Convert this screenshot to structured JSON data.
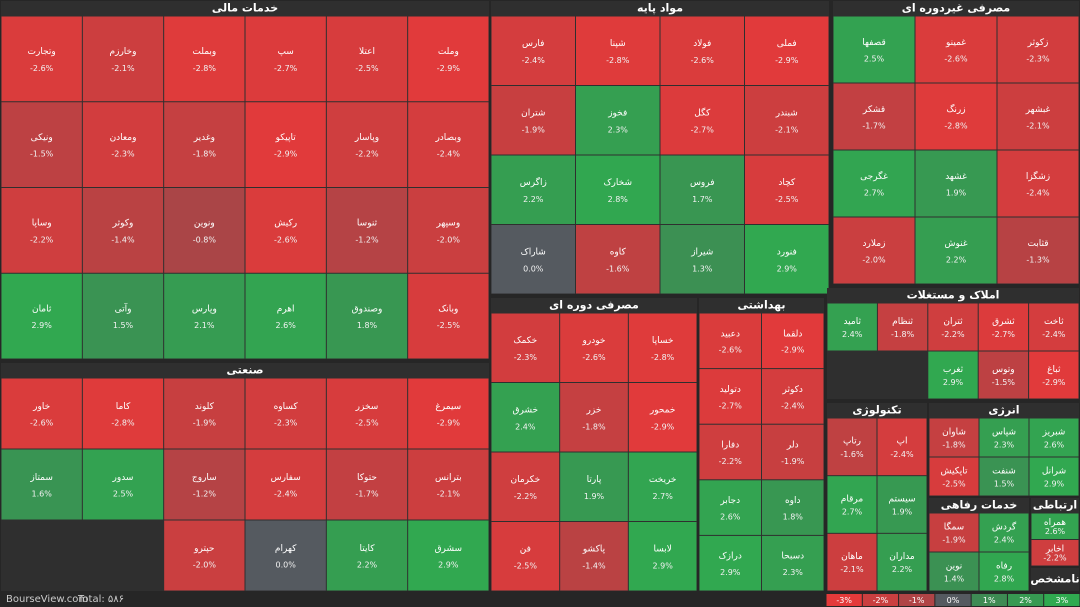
{
  "chart_data": {
    "type": "treemap",
    "sectors": [
      {
        "name": "خدمات مالی",
        "stocks": [
          {
            "name": "وملت",
            "value": -2.9,
            "label": "-2.9%"
          },
          {
            "name": "اعتلا",
            "value": -2.5,
            "label": "-2.5%"
          },
          {
            "name": "سپ",
            "value": -2.7,
            "label": "-2.7%"
          },
          {
            "name": "وبملت",
            "value": -2.8,
            "label": "-2.8%"
          },
          {
            "name": "وخارزم",
            "value": -2.1,
            "label": "-2.1%"
          },
          {
            "name": "وتجارت",
            "value": -2.6,
            "label": "-2.6%"
          },
          {
            "name": "وبصادر",
            "value": -2.4,
            "label": "-2.4%"
          },
          {
            "name": "وپاسار",
            "value": -2.2,
            "label": "-2.2%"
          },
          {
            "name": "تاپیکو",
            "value": -2.9,
            "label": "-2.9%"
          },
          {
            "name": "وغدیر",
            "value": -1.8,
            "label": "-1.8%"
          },
          {
            "name": "ومعادن",
            "value": -2.3,
            "label": "-2.3%"
          },
          {
            "name": "ونیکی",
            "value": -1.5,
            "label": "-1.5%"
          },
          {
            "name": "وسپهر",
            "value": -2.0,
            "label": "-2.0%"
          },
          {
            "name": "ثنوسا",
            "value": -1.2,
            "label": "-1.2%"
          },
          {
            "name": "رکیش",
            "value": -2.6,
            "label": "-2.6%"
          },
          {
            "name": "ونوین",
            "value": -0.8,
            "label": "-0.8%"
          },
          {
            "name": "وکوثر",
            "value": -1.4,
            "label": "-1.4%"
          },
          {
            "name": "وساپا",
            "value": -2.2,
            "label": "-2.2%"
          },
          {
            "name": "وبانک",
            "value": -2.5,
            "label": "-2.5%"
          },
          {
            "name": "وصندوق",
            "value": 1.8,
            "label": "1.8%"
          },
          {
            "name": "اهرم",
            "value": 2.6,
            "label": "2.6%"
          },
          {
            "name": "وپارس",
            "value": 2.1,
            "label": "2.1%"
          },
          {
            "name": "وآتی",
            "value": 1.5,
            "label": "1.5%"
          },
          {
            "name": "ثامان",
            "value": 2.9,
            "label": "2.9%"
          }
        ]
      },
      {
        "name": "مواد پایه",
        "stocks": [
          {
            "name": "فملی",
            "value": -2.9,
            "label": "-2.9%"
          },
          {
            "name": "فولاد",
            "value": -2.6,
            "label": "-2.6%"
          },
          {
            "name": "شپنا",
            "value": -2.8,
            "label": "-2.8%"
          },
          {
            "name": "فارس",
            "value": -2.4,
            "label": "-2.4%"
          },
          {
            "name": "شبندر",
            "value": -2.1,
            "label": "-2.1%"
          },
          {
            "name": "کگل",
            "value": -2.7,
            "label": "-2.7%"
          },
          {
            "name": "فخوز",
            "value": 2.3,
            "label": "2.3%"
          },
          {
            "name": "شتران",
            "value": -1.9,
            "label": "-1.9%"
          },
          {
            "name": "کچاد",
            "value": -2.5,
            "label": "-2.5%"
          },
          {
            "name": "فروس",
            "value": 1.7,
            "label": "1.7%"
          },
          {
            "name": "شخارک",
            "value": 2.8,
            "label": "2.8%"
          },
          {
            "name": "زاگرس",
            "value": 2.2,
            "label": "2.2%"
          },
          {
            "name": "فنورد",
            "value": 2.9,
            "label": "2.9%"
          },
          {
            "name": "شیراز",
            "value": 1.3,
            "label": "1.3%"
          },
          {
            "name": "کاوه",
            "value": -1.6,
            "label": "-1.6%"
          },
          {
            "name": "شاراک",
            "value": 0.0,
            "label": "0.0%"
          }
        ]
      },
      {
        "name": "مصرفی غیردوره ای",
        "stocks": [
          {
            "name": "زکوثر",
            "value": -2.3,
            "label": "-2.3%"
          },
          {
            "name": "غمینو",
            "value": -2.6,
            "label": "-2.6%"
          },
          {
            "name": "قصفها",
            "value": 2.5,
            "label": "2.5%"
          },
          {
            "name": "غبشهر",
            "value": -2.1,
            "label": "-2.1%"
          },
          {
            "name": "زرنگ",
            "value": -2.8,
            "label": "-2.8%"
          },
          {
            "name": "قشکر",
            "value": -1.7,
            "label": "-1.7%"
          },
          {
            "name": "زشگزا",
            "value": -2.4,
            "label": "-2.4%"
          },
          {
            "name": "غشهد",
            "value": 1.9,
            "label": "1.9%"
          },
          {
            "name": "غگرجی",
            "value": 2.7,
            "label": "2.7%"
          },
          {
            "name": "قثابت",
            "value": -1.3,
            "label": "-1.3%"
          },
          {
            "name": "غنوش",
            "value": 2.2,
            "label": "2.2%"
          },
          {
            "name": "زملارد",
            "value": -2.0,
            "label": "-2.0%"
          }
        ]
      },
      {
        "name": "املاک و مستغلات",
        "stocks": [
          {
            "name": "ثاخت",
            "value": -2.4,
            "label": "-2.4%"
          },
          {
            "name": "ثشرق",
            "value": -2.7,
            "label": "-2.7%"
          },
          {
            "name": "ثتران",
            "value": -2.2,
            "label": "-2.2%"
          },
          {
            "name": "ثنظام",
            "value": -1.8,
            "label": "-1.8%"
          },
          {
            "name": "ثامید",
            "value": 2.4,
            "label": "2.4%"
          },
          {
            "name": "ثباغ",
            "value": -2.9,
            "label": "-2.9%"
          },
          {
            "name": "وتوس",
            "value": -1.5,
            "label": "-1.5%"
          },
          {
            "name": "ثغرب",
            "value": 2.9,
            "label": "2.9%"
          }
        ]
      },
      {
        "name": "صنعتی",
        "stocks": [
          {
            "name": "سیمرغ",
            "value": -2.9,
            "label": "-2.9%"
          },
          {
            "name": "سخزر",
            "value": -2.5,
            "label": "-2.5%"
          },
          {
            "name": "کساوه",
            "value": -2.3,
            "label": "-2.3%"
          },
          {
            "name": "کلوند",
            "value": -1.9,
            "label": "-1.9%"
          },
          {
            "name": "کاما",
            "value": -2.8,
            "label": "-2.8%"
          },
          {
            "name": "خاور",
            "value": -2.6,
            "label": "-2.6%"
          },
          {
            "name": "بترانس",
            "value": -2.1,
            "label": "-2.1%"
          },
          {
            "name": "حتوکا",
            "value": -1.7,
            "label": "-1.7%"
          },
          {
            "name": "سفارس",
            "value": -2.4,
            "label": "-2.4%"
          },
          {
            "name": "ساروج",
            "value": -1.2,
            "label": "-1.2%"
          },
          {
            "name": "سدور",
            "value": 2.5,
            "label": "2.5%"
          },
          {
            "name": "سمتاز",
            "value": 1.6,
            "label": "1.6%"
          },
          {
            "name": "سشرق",
            "value": 2.9,
            "label": "2.9%"
          },
          {
            "name": "کایتا",
            "value": 2.2,
            "label": "2.2%"
          },
          {
            "name": "کهرام",
            "value": 0.0,
            "label": "0.0%"
          },
          {
            "name": "حپترو",
            "value": -2.0,
            "label": "-2.0%"
          }
        ]
      },
      {
        "name": "مصرفی دوره ای",
        "stocks": [
          {
            "name": "خساپا",
            "value": -2.8,
            "label": "-2.8%"
          },
          {
            "name": "خودرو",
            "value": -2.6,
            "label": "-2.6%"
          },
          {
            "name": "خکمک",
            "value": -2.3,
            "label": "-2.3%"
          },
          {
            "name": "خمحور",
            "value": -2.9,
            "label": "-2.9%"
          },
          {
            "name": "خزر",
            "value": -1.8,
            "label": "-1.8%"
          },
          {
            "name": "خشرق",
            "value": 2.4,
            "label": "2.4%"
          },
          {
            "name": "خریخت",
            "value": 2.7,
            "label": "2.7%"
          },
          {
            "name": "پارتا",
            "value": 1.9,
            "label": "1.9%"
          },
          {
            "name": "خکرمان",
            "value": -2.2,
            "label": "-2.2%"
          },
          {
            "name": "لابسا",
            "value": 2.9,
            "label": "2.9%"
          },
          {
            "name": "پاکشو",
            "value": -1.4,
            "label": "-1.4%"
          },
          {
            "name": "فن",
            "value": -2.5,
            "label": "-2.5%"
          }
        ]
      },
      {
        "name": "بهداشتی",
        "stocks": [
          {
            "name": "دلقما",
            "value": -2.9,
            "label": "-2.9%"
          },
          {
            "name": "دعبید",
            "value": -2.6,
            "label": "-2.6%"
          },
          {
            "name": "دکوثر",
            "value": -2.4,
            "label": "-2.4%"
          },
          {
            "name": "دتولید",
            "value": -2.7,
            "label": "-2.7%"
          },
          {
            "name": "دلر",
            "value": -1.9,
            "label": "-1.9%"
          },
          {
            "name": "دفارا",
            "value": -2.2,
            "label": "-2.2%"
          },
          {
            "name": "داوه",
            "value": 1.8,
            "label": "1.8%"
          },
          {
            "name": "دجابر",
            "value": 2.6,
            "label": "2.6%"
          },
          {
            "name": "دسبحا",
            "value": 2.3,
            "label": "2.3%"
          },
          {
            "name": "درازک",
            "value": 2.9,
            "label": "2.9%"
          }
        ]
      },
      {
        "name": "تکنولوژی",
        "stocks": [
          {
            "name": "اپ",
            "value": -2.4,
            "label": "-2.4%"
          },
          {
            "name": "رتاپ",
            "value": -1.6,
            "label": "-1.6%"
          },
          {
            "name": "سیستم",
            "value": 1.9,
            "label": "1.9%"
          },
          {
            "name": "مرقام",
            "value": 2.7,
            "label": "2.7%"
          },
          {
            "name": "مداران",
            "value": 2.2,
            "label": "2.2%"
          },
          {
            "name": "ماهان",
            "value": -2.1,
            "label": "-2.1%"
          }
        ]
      },
      {
        "name": "انرژی",
        "stocks": [
          {
            "name": "شبریز",
            "value": 2.6,
            "label": "2.6%"
          },
          {
            "name": "شپاس",
            "value": 2.3,
            "label": "2.3%"
          },
          {
            "name": "شاوان",
            "value": -1.8,
            "label": "-1.8%"
          },
          {
            "name": "شرانل",
            "value": 2.9,
            "label": "2.9%"
          },
          {
            "name": "شنفت",
            "value": 1.5,
            "label": "1.5%"
          },
          {
            "name": "تاپکیش",
            "value": -2.5,
            "label": "-2.5%"
          }
        ]
      },
      {
        "name": "خدمات رفاهی",
        "stocks": [
          {
            "name": "گردش",
            "value": 2.4,
            "label": "2.4%"
          },
          {
            "name": "سمگا",
            "value": -1.9,
            "label": "-1.9%"
          },
          {
            "name": "رفاه",
            "value": 2.8,
            "label": "2.8%"
          },
          {
            "name": "نوین",
            "value": 1.4,
            "label": "1.4%"
          }
        ]
      },
      {
        "name": "ارتباطی",
        "stocks": [
          {
            "name": "همراه",
            "value": 2.6,
            "label": "2.6%"
          },
          {
            "name": "اخابر",
            "value": -2.2,
            "label": "-2.2%"
          }
        ]
      },
      {
        "name": "نامشخص",
        "stocks": []
      }
    ],
    "legend": [
      {
        "value": -3,
        "label": "-3%"
      },
      {
        "value": -2,
        "label": "-2%"
      },
      {
        "value": -1,
        "label": "-1%"
      },
      {
        "value": 0,
        "label": "0%"
      },
      {
        "value": 1,
        "label": "1%"
      },
      {
        "value": 2,
        "label": "2%"
      },
      {
        "value": 3,
        "label": "3%"
      }
    ],
    "source": "BourseView.com",
    "total": "Total: ۵۸۶"
  }
}
